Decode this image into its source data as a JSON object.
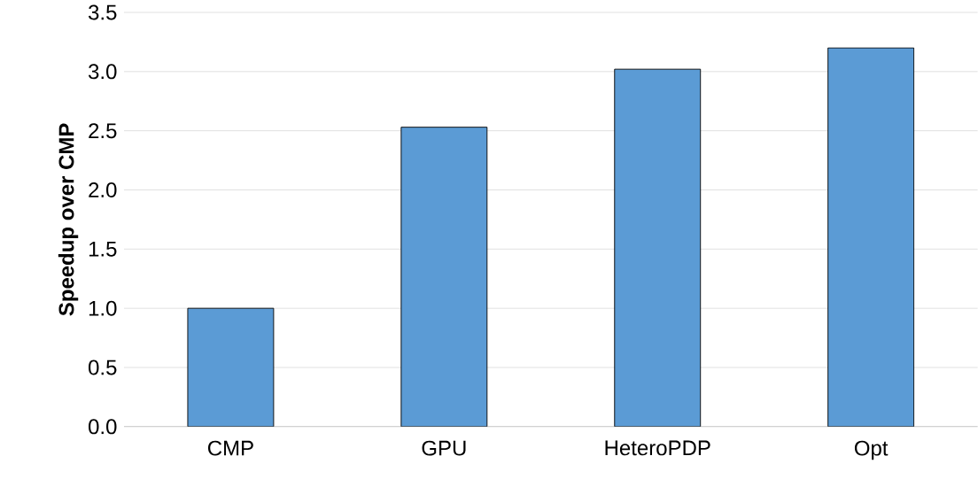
{
  "chart_data": {
    "type": "bar",
    "ylabel": "Speedup over CMP",
    "categories": [
      "CMP",
      "GPU",
      "HeteroPDP",
      "Opt"
    ],
    "values": [
      1.0,
      2.53,
      3.02,
      3.2
    ],
    "color": "#5b9bd5",
    "ylim": [
      0,
      3.5
    ],
    "yticks": [
      {
        "value": 0,
        "label": "0.0"
      },
      {
        "value": 0.5,
        "label": "0.5"
      },
      {
        "value": 1,
        "label": "1.0"
      },
      {
        "value": 1.5,
        "label": "1.5"
      },
      {
        "value": 2,
        "label": "2.0"
      },
      {
        "value": 2.5,
        "label": "2.5"
      },
      {
        "value": 3,
        "label": "3.0"
      },
      {
        "value": 3.5,
        "label": "3.5"
      }
    ],
    "grid": "y"
  }
}
